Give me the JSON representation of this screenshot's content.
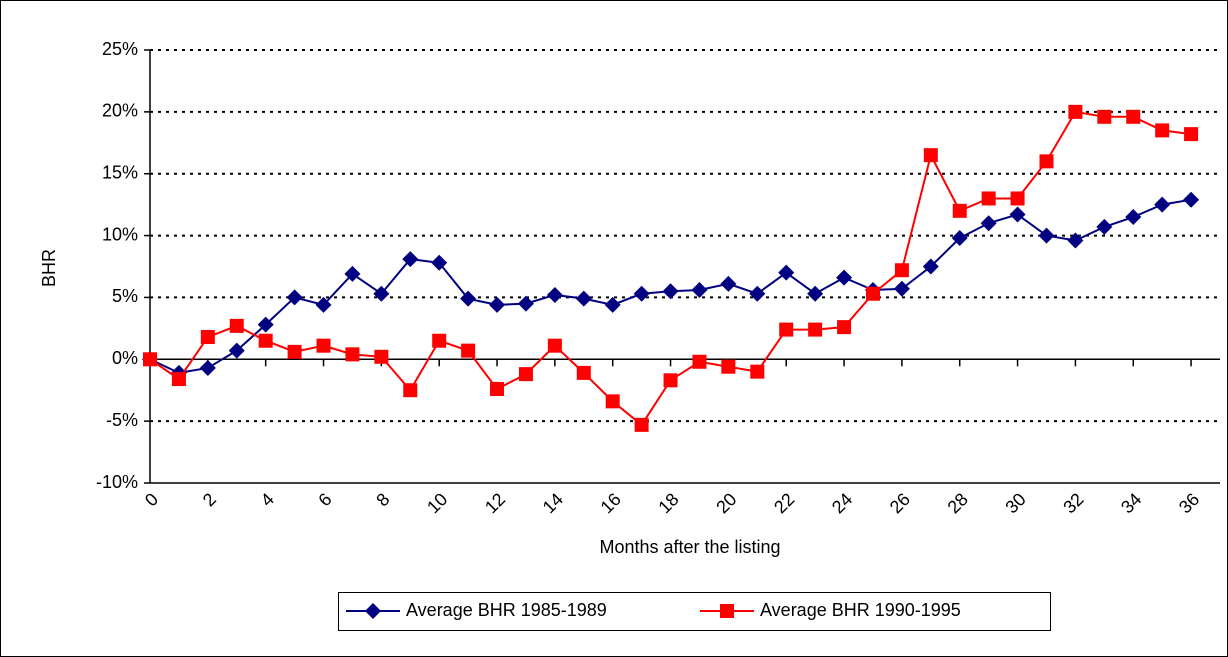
{
  "chart_data": {
    "type": "line",
    "x_label": "Months after the listing",
    "y_label": "BHR",
    "x": [
      0,
      1,
      2,
      3,
      4,
      5,
      6,
      7,
      8,
      9,
      10,
      11,
      12,
      13,
      14,
      15,
      16,
      17,
      18,
      19,
      20,
      21,
      22,
      23,
      24,
      25,
      26,
      27,
      28,
      29,
      30,
      31,
      32,
      33,
      34,
      35,
      36
    ],
    "xlim": [
      0,
      37
    ],
    "xticks": [
      0,
      2,
      4,
      6,
      8,
      10,
      12,
      14,
      16,
      18,
      20,
      22,
      24,
      26,
      28,
      30,
      32,
      34,
      36
    ],
    "ylim": [
      -10,
      25
    ],
    "yticks": [
      {
        "value": -10,
        "label": "-10%"
      },
      {
        "value": -5,
        "label": "-5%"
      },
      {
        "value": 0,
        "label": "0%"
      },
      {
        "value": 5,
        "label": "5%"
      },
      {
        "value": 10,
        "label": "10%"
      },
      {
        "value": 15,
        "label": "15%"
      },
      {
        "value": 20,
        "label": "20%"
      },
      {
        "value": 25,
        "label": "25%"
      }
    ],
    "grid": true,
    "legend": "bottom",
    "series": [
      {
        "name": "Average BHR 1985-1989",
        "color": "#000080",
        "marker": "diamond",
        "values": [
          0,
          -1.1,
          -0.7,
          0.7,
          2.8,
          5.0,
          4.4,
          6.9,
          5.3,
          8.1,
          7.8,
          4.9,
          4.4,
          4.5,
          5.2,
          4.9,
          4.4,
          5.3,
          5.5,
          5.6,
          6.1,
          5.3,
          7.0,
          5.3,
          6.6,
          5.6,
          5.7,
          7.5,
          9.8,
          11.0,
          11.7,
          10.0,
          9.6,
          10.7,
          11.5,
          12.5,
          12.9
        ]
      },
      {
        "name": "Average BHR 1990-1995",
        "color": "#ff0000",
        "marker": "square",
        "values": [
          0,
          -1.6,
          1.8,
          2.7,
          1.5,
          0.6,
          1.1,
          0.4,
          0.2,
          -2.5,
          1.5,
          0.7,
          -2.4,
          -1.2,
          1.1,
          -1.1,
          -3.4,
          -5.3,
          -1.7,
          -0.2,
          -0.6,
          -1.0,
          2.4,
          2.4,
          2.6,
          5.3,
          7.2,
          16.5,
          12.0,
          13.0,
          13.0,
          16.0,
          20.0,
          19.6,
          19.6,
          18.5,
          18.2
        ]
      }
    ]
  }
}
